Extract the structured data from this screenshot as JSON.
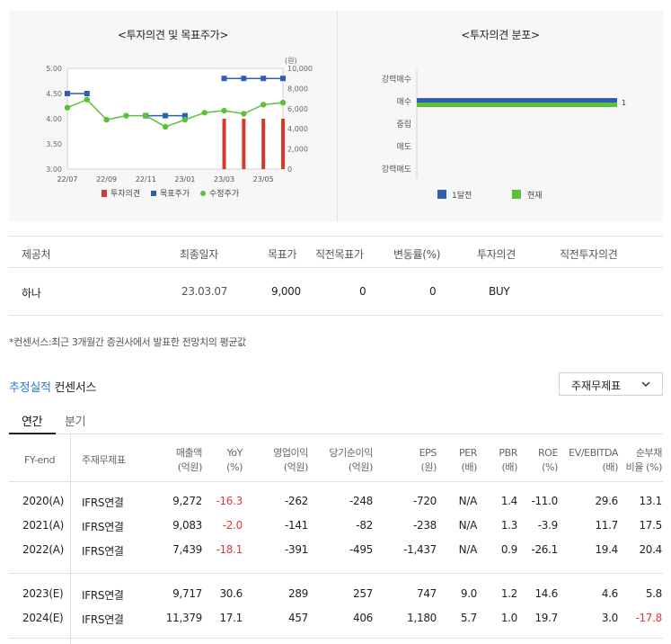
{
  "charts": {
    "left": {
      "title": "<투자의견 및 목표주가>",
      "x_labels": [
        "22/07",
        "22/09",
        "22/11",
        "23/01",
        "23/03",
        "23/05"
      ],
      "y_left_ticks": [
        "5.00",
        "4.50",
        "4.00",
        "3.50",
        "3.00"
      ],
      "y_right_unit": "(원)",
      "y_right_ticks": [
        "10,000",
        "8,000",
        "6,000",
        "4,000",
        "2,000",
        "0"
      ],
      "legend": [
        "투자의견",
        "목표주가",
        "수정주가"
      ],
      "colors": {
        "opinion": "#d53a2c",
        "target": "#2f5fb5",
        "price": "#5cc03a"
      }
    },
    "right": {
      "title": "<투자의견 분포>",
      "categories": [
        "강력매수",
        "매수",
        "중립",
        "매도",
        "강력매도"
      ],
      "value_label": "1",
      "legend": [
        "1달전",
        "현재"
      ],
      "colors": {
        "month_ago": "#2f5fb5",
        "current": "#5cc03a"
      }
    }
  },
  "chart_data": [
    {
      "type": "line",
      "title": "<투자의견 및 목표주가>",
      "x": [
        "22/07",
        "22/08",
        "22/09",
        "22/10",
        "22/11",
        "22/12",
        "23/01",
        "23/02",
        "23/03",
        "23/04",
        "23/05",
        "23/06"
      ],
      "series": [
        {
          "name": "투자의견",
          "kind": "bar",
          "axis": "left",
          "values": [
            null,
            null,
            null,
            null,
            null,
            null,
            null,
            null,
            4.0,
            4.0,
            4.0,
            4.0
          ]
        },
        {
          "name": "목표주가",
          "kind": "line",
          "axis": "right",
          "values": [
            7500,
            7500,
            null,
            null,
            5300,
            5300,
            5300,
            null,
            9000,
            9000,
            9000,
            9000
          ]
        },
        {
          "name": "수정주가",
          "kind": "line",
          "axis": "right",
          "values": [
            6100,
            6900,
            4900,
            5300,
            5300,
            4200,
            4900,
            5600,
            5800,
            5500,
            6400,
            6600
          ]
        }
      ],
      "ylim_left": [
        3.0,
        5.0
      ],
      "ylim_right": [
        0,
        10000
      ],
      "legend_position": "bottom"
    },
    {
      "type": "bar",
      "title": "<투자의견 분포>",
      "orientation": "horizontal",
      "categories": [
        "강력매수",
        "매수",
        "중립",
        "매도",
        "강력매도"
      ],
      "series": [
        {
          "name": "1달전",
          "values": [
            0,
            1,
            0,
            0,
            0
          ]
        },
        {
          "name": "현재",
          "values": [
            0,
            1,
            0,
            0,
            0
          ]
        }
      ],
      "legend_position": "bottom"
    }
  ],
  "provider_table": {
    "headers": [
      "제공처",
      "최종일자",
      "목표가",
      "직전목표가",
      "변동률(%)",
      "투자의견",
      "직전투자의견"
    ],
    "row": [
      "하나",
      "23.03.07",
      "9,000",
      "0",
      "0",
      "BUY",
      ""
    ]
  },
  "note": "*컨센서스:최근 3개월간 증권사에서 발표한 전망치의 평균값",
  "section": {
    "title_blue": "추정실적",
    "title_dark": "컨센서스",
    "select_value": "주재무제표"
  },
  "tabs": [
    "연간",
    "분기"
  ],
  "fin_table": {
    "headers": [
      "FY-end",
      "주재무제표",
      "매출액",
      "(억원)",
      "YoY",
      "(%)",
      "영업이익",
      "(억원)",
      "당기순이익",
      "(억원)",
      "EPS",
      "(원)",
      "PER",
      "(배)",
      "PBR",
      "(배)",
      "ROE",
      "(%)",
      "EV/EBITDA",
      "(배)",
      "순부채",
      "비율 (%)"
    ],
    "rows": [
      [
        "2020(A)",
        "IFRS연결",
        "9,272",
        "-16.3",
        "-262",
        "-248",
        "-720",
        "N/A",
        "1.4",
        "-11.0",
        "29.6",
        "13.1"
      ],
      [
        "2021(A)",
        "IFRS연결",
        "9,083",
        "-2.0",
        "-141",
        "-82",
        "-238",
        "N/A",
        "1.3",
        "-3.9",
        "11.7",
        "17.5"
      ],
      [
        "2022(A)",
        "IFRS연결",
        "7,439",
        "-18.1",
        "-391",
        "-495",
        "-1,437",
        "N/A",
        "0.9",
        "-26.1",
        "19.4",
        "20.4"
      ],
      [
        "2023(E)",
        "IFRS연결",
        "9,717",
        "30.6",
        "289",
        "257",
        "747",
        "9.0",
        "1.2",
        "14.6",
        "4.6",
        "5.8"
      ],
      [
        "2024(E)",
        "IFRS연결",
        "11,379",
        "17.1",
        "457",
        "406",
        "1,180",
        "5.7",
        "1.0",
        "19.7",
        "3.0",
        "-17.8"
      ]
    ]
  }
}
